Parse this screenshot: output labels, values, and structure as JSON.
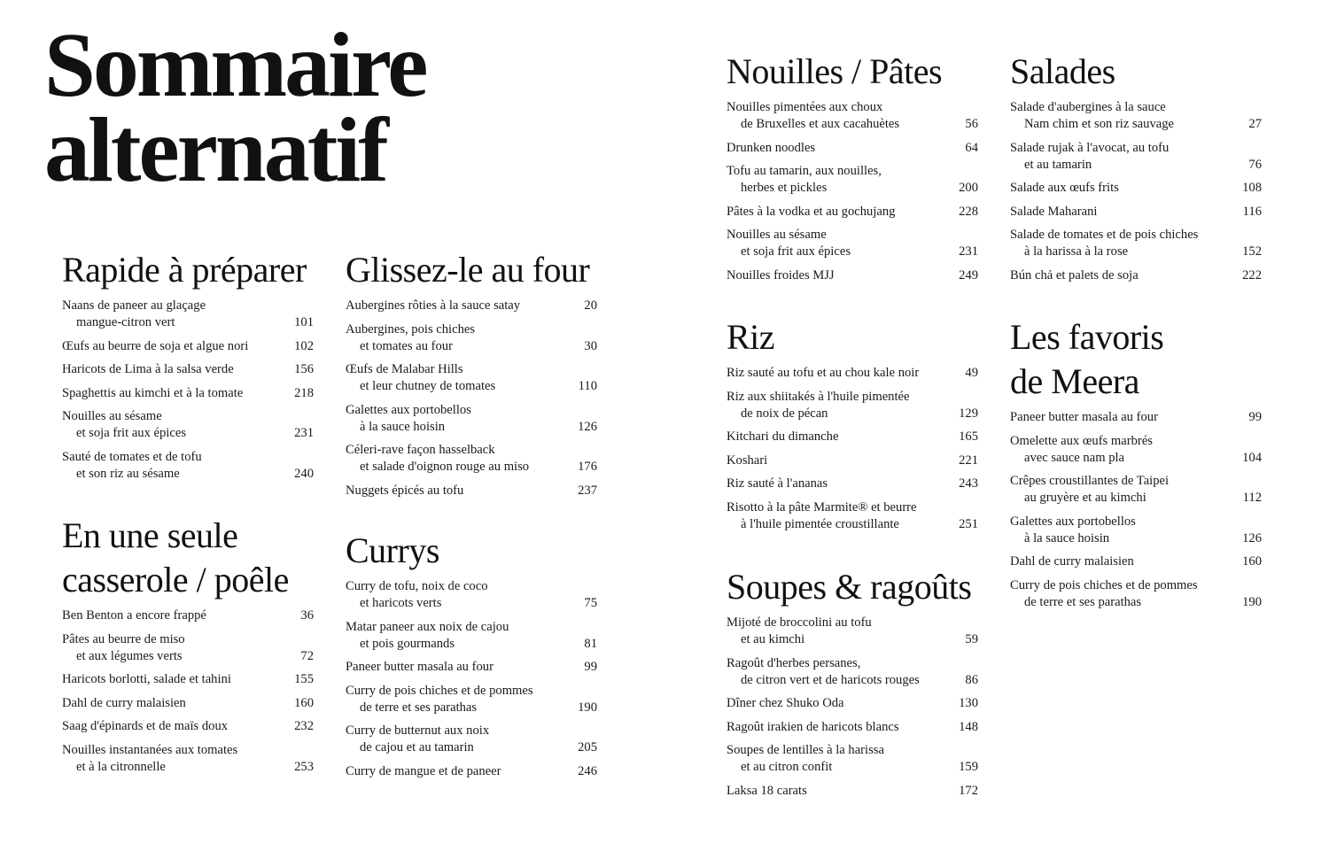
{
  "title": {
    "line1": "Sommaire",
    "line2": "alternatif"
  },
  "sections": [
    {
      "heading": [
        "Rapide à préparer"
      ],
      "entries": [
        {
          "lines": [
            "Naans de paneer au glaçage",
            "mangue-citron vert"
          ],
          "page": "101"
        },
        {
          "lines": [
            "Œufs au beurre de soja et algue nori"
          ],
          "page": "102"
        },
        {
          "lines": [
            "Haricots de Lima à la salsa verde"
          ],
          "page": "156"
        },
        {
          "lines": [
            "Spaghettis au kimchi et à la tomate"
          ],
          "page": "218"
        },
        {
          "lines": [
            "Nouilles au sésame",
            "et soja frit aux épices"
          ],
          "page": "231"
        },
        {
          "lines": [
            "Sauté de tomates et de tofu",
            "et son riz au sésame"
          ],
          "page": "240"
        }
      ]
    },
    {
      "heading": [
        "En une seule",
        "casserole / poêle"
      ],
      "entries": [
        {
          "lines": [
            "Ben Benton a encore frappé"
          ],
          "page": "36"
        },
        {
          "lines": [
            "Pâtes au beurre de miso",
            "et aux légumes verts"
          ],
          "page": "72"
        },
        {
          "lines": [
            "Haricots borlotti, salade et tahini"
          ],
          "page": "155"
        },
        {
          "lines": [
            "Dahl de curry malaisien"
          ],
          "page": "160"
        },
        {
          "lines": [
            "Saag d'épinards et de maïs doux"
          ],
          "page": "232"
        },
        {
          "lines": [
            "Nouilles instantanées aux tomates",
            "et à la citronnelle"
          ],
          "page": "253"
        }
      ]
    },
    {
      "heading": [
        "Glissez-le au four"
      ],
      "entries": [
        {
          "lines": [
            "Aubergines rôties à la sauce satay"
          ],
          "page": "20"
        },
        {
          "lines": [
            "Aubergines, pois chiches",
            "et tomates au four"
          ],
          "page": "30"
        },
        {
          "lines": [
            "Œufs de Malabar Hills",
            "et leur chutney de tomates"
          ],
          "page": "110"
        },
        {
          "lines": [
            "Galettes aux portobellos",
            "à la sauce hoisin"
          ],
          "page": "126"
        },
        {
          "lines": [
            "Céleri-rave façon hasselback",
            "et salade d'oignon rouge au miso"
          ],
          "page": "176"
        },
        {
          "lines": [
            "Nuggets épicés au tofu"
          ],
          "page": "237"
        }
      ]
    },
    {
      "heading": [
        "Currys"
      ],
      "entries": [
        {
          "lines": [
            "Curry de tofu, noix de coco",
            "et haricots verts"
          ],
          "page": "75"
        },
        {
          "lines": [
            "Matar paneer aux noix de cajou",
            "et pois gourmands"
          ],
          "page": "81"
        },
        {
          "lines": [
            "Paneer butter masala au four"
          ],
          "page": "99"
        },
        {
          "lines": [
            "Curry de pois chiches et de pommes",
            "de terre et ses parathas"
          ],
          "page": "190"
        },
        {
          "lines": [
            "Curry de butternut aux noix",
            "de cajou et au tamarin"
          ],
          "page": "205"
        },
        {
          "lines": [
            "Curry de mangue et de paneer"
          ],
          "page": "246"
        }
      ]
    },
    {
      "heading": [
        "Nouilles / Pâtes"
      ],
      "entries": [
        {
          "lines": [
            "Nouilles pimentées aux choux",
            "de Bruxelles et aux cacahuètes"
          ],
          "page": "56"
        },
        {
          "lines": [
            "Drunken noodles"
          ],
          "page": "64"
        },
        {
          "lines": [
            "Tofu au tamarin, aux nouilles,",
            "herbes et pickles"
          ],
          "page": "200"
        },
        {
          "lines": [
            "Pâtes à la vodka et au gochujang"
          ],
          "page": "228"
        },
        {
          "lines": [
            "Nouilles au sésame",
            "et soja frit aux épices"
          ],
          "page": "231"
        },
        {
          "lines": [
            "Nouilles froides MJJ"
          ],
          "page": "249"
        }
      ]
    },
    {
      "heading": [
        "Riz"
      ],
      "entries": [
        {
          "lines": [
            "Riz sauté au tofu et au chou kale noir"
          ],
          "page": "49"
        },
        {
          "lines": [
            "Riz aux shiitakés à l'huile pimentée",
            "de noix de pécan"
          ],
          "page": "129"
        },
        {
          "lines": [
            "Kitchari du dimanche"
          ],
          "page": "165"
        },
        {
          "lines": [
            "Koshari"
          ],
          "page": "221"
        },
        {
          "lines": [
            "Riz sauté à l'ananas"
          ],
          "page": "243"
        },
        {
          "lines": [
            "Risotto à la pâte Marmite® et beurre",
            "à l'huile pimentée croustillante"
          ],
          "page": "251"
        }
      ]
    },
    {
      "heading": [
        "Soupes & ragoûts"
      ],
      "entries": [
        {
          "lines": [
            "Mijoté de broccolini au tofu",
            "et au kimchi"
          ],
          "page": "59"
        },
        {
          "lines": [
            "Ragoût d'herbes persanes,",
            "de citron vert et de haricots rouges"
          ],
          "page": "86"
        },
        {
          "lines": [
            "Dîner chez Shuko Oda"
          ],
          "page": "130"
        },
        {
          "lines": [
            "Ragoût irakien de haricots blancs"
          ],
          "page": "148"
        },
        {
          "lines": [
            "Soupes de lentilles à la harissa",
            "et au citron confit"
          ],
          "page": "159"
        },
        {
          "lines": [
            "Laksa 18 carats"
          ],
          "page": "172"
        }
      ]
    },
    {
      "heading": [
        "Salades"
      ],
      "entries": [
        {
          "lines": [
            "Salade d'aubergines à la sauce",
            "Nam chim et son riz sauvage"
          ],
          "page": "27"
        },
        {
          "lines": [
            "Salade rujak à l'avocat, au tofu",
            "et au tamarin"
          ],
          "page": "76"
        },
        {
          "lines": [
            "Salade aux œufs frits"
          ],
          "page": "108"
        },
        {
          "lines": [
            "Salade Maharani"
          ],
          "page": "116"
        },
        {
          "lines": [
            "Salade de tomates et de pois chiches",
            "à la harissa à la rose"
          ],
          "page": "152"
        },
        {
          "lines": [
            "Bún chả et palets de soja"
          ],
          "page": "222"
        }
      ]
    },
    {
      "heading": [
        "Les favoris",
        "de Meera"
      ],
      "entries": [
        {
          "lines": [
            "Paneer butter masala au four"
          ],
          "page": "99"
        },
        {
          "lines": [
            "Omelette aux œufs marbrés",
            "avec sauce nam pla"
          ],
          "page": "104"
        },
        {
          "lines": [
            "Crêpes croustillantes de Taipei",
            "au gruyère et au kimchi"
          ],
          "page": "112"
        },
        {
          "lines": [
            "Galettes aux portobellos",
            "à la sauce hoisin"
          ],
          "page": "126"
        },
        {
          "lines": [
            "Dahl de curry malaisien"
          ],
          "page": "160"
        },
        {
          "lines": [
            "Curry de pois chiches et de pommes",
            "de terre et ses parathas"
          ],
          "page": "190"
        }
      ]
    }
  ]
}
